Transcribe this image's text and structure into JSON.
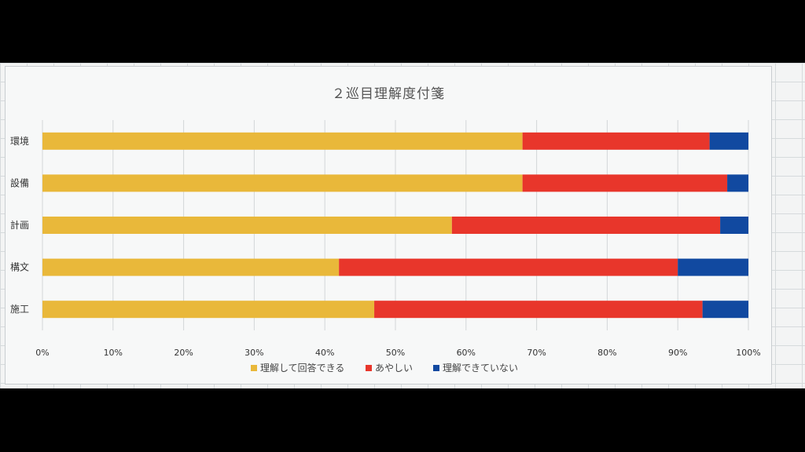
{
  "chart_data": {
    "type": "bar",
    "orientation": "horizontal",
    "stacked": "percent",
    "title": "２巡目理解度付箋",
    "categories": [
      "環境",
      "設備",
      "計画",
      "構文",
      "施工"
    ],
    "series": [
      {
        "name": "理解して回答できる",
        "color": "#e9b83a",
        "values": [
          68,
          68,
          58,
          42,
          47
        ]
      },
      {
        "name": "あやしい",
        "color": "#e8362b",
        "values": [
          26.5,
          29,
          38,
          48,
          46.5
        ]
      },
      {
        "name": "理解できていない",
        "color": "#1149a0",
        "values": [
          5.5,
          3,
          4,
          10,
          6.5
        ]
      }
    ],
    "xlim": [
      0,
      100
    ],
    "x_ticks": [
      "0%",
      "10%",
      "20%",
      "30%",
      "40%",
      "50%",
      "60%",
      "70%",
      "80%",
      "90%",
      "100%"
    ],
    "grid": true,
    "legend_position": "bottom"
  }
}
